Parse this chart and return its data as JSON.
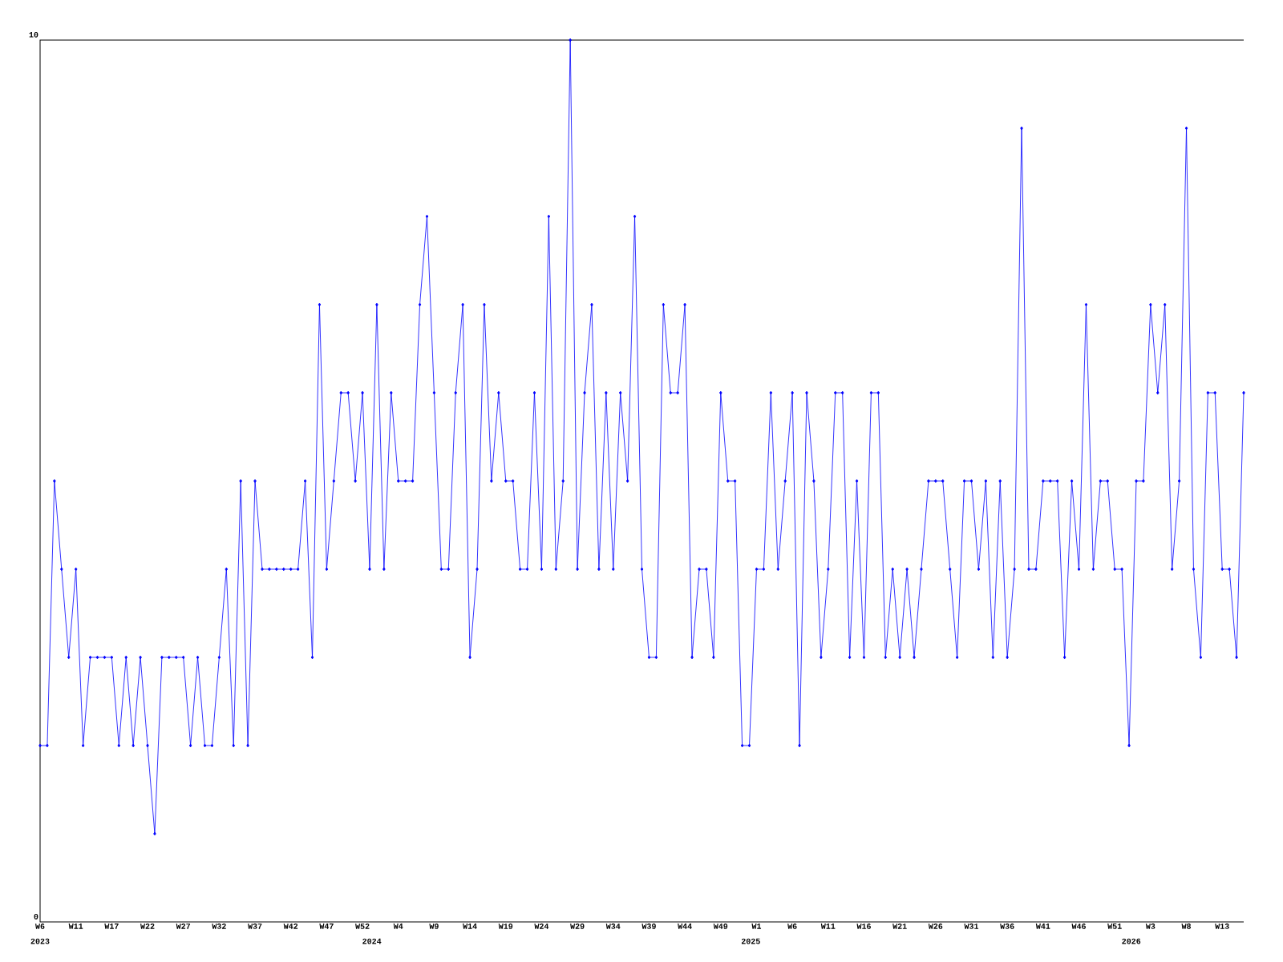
{
  "chart_data": {
    "type": "line",
    "categories": [
      "W6",
      null,
      null,
      null,
      null,
      "W11",
      null,
      null,
      null,
      null,
      "W17",
      null,
      null,
      null,
      null,
      "W22",
      null,
      null,
      null,
      null,
      "W27",
      null,
      null,
      null,
      null,
      "W32",
      null,
      null,
      null,
      null,
      "W37",
      null,
      null,
      null,
      null,
      "W42",
      null,
      null,
      null,
      null,
      "W47",
      null,
      null,
      null,
      null,
      "W52",
      null,
      null,
      null,
      null,
      "W4",
      null,
      null,
      null,
      null,
      "W9",
      null,
      null,
      null,
      null,
      "W14",
      null,
      null,
      null,
      null,
      "W19",
      null,
      null,
      null,
      null,
      "W24",
      null,
      null,
      null,
      null,
      "W29",
      null,
      null,
      null,
      null,
      "W34",
      null,
      null,
      null,
      null,
      "W39",
      null,
      null,
      null,
      null,
      "W44",
      null,
      null,
      null,
      null,
      "W49",
      null,
      null,
      null,
      null,
      "W1",
      null,
      null,
      null,
      null,
      "W6",
      null,
      null,
      null,
      null,
      "W11",
      null,
      null,
      null,
      null,
      "W16",
      null,
      null,
      null,
      null,
      "W21",
      null,
      null,
      null,
      null,
      "W26",
      null,
      null,
      null,
      null,
      "W31",
      null,
      null,
      null,
      null,
      "W36",
      null,
      null,
      null,
      null,
      "W41",
      null,
      null,
      null,
      null,
      "W46",
      null,
      null,
      null,
      null,
      "W51",
      null,
      null,
      null,
      null,
      "W3",
      null,
      null,
      null,
      null,
      "W8",
      null,
      null,
      null,
      null,
      "W13",
      null,
      null,
      null
    ],
    "values": [
      2,
      2,
      5,
      4,
      3,
      4,
      2,
      3,
      3,
      3,
      3,
      2,
      3,
      2,
      3,
      2,
      1,
      3,
      3,
      3,
      3,
      2,
      3,
      2,
      2,
      3,
      4,
      2,
      5,
      2,
      5,
      4,
      4,
      4,
      4,
      4,
      4,
      5,
      3,
      7,
      4,
      5,
      6,
      6,
      5,
      6,
      4,
      7,
      4,
      6,
      5,
      5,
      5,
      7,
      8,
      6,
      4,
      4,
      6,
      7,
      3,
      4,
      7,
      5,
      6,
      5,
      5,
      4,
      4,
      6,
      4,
      8,
      4,
      5,
      10,
      4,
      6,
      7,
      4,
      6,
      4,
      6,
      5,
      8,
      4,
      3,
      3,
      7,
      6,
      6,
      7,
      3,
      4,
      4,
      3,
      6,
      5,
      5,
      2,
      2,
      4,
      4,
      6,
      4,
      5,
      6,
      2,
      6,
      5,
      3,
      4,
      6,
      6,
      3,
      5,
      3,
      6,
      6,
      3,
      4,
      3,
      4,
      3,
      4,
      5,
      5,
      5,
      4,
      3,
      5,
      5,
      4,
      5,
      3,
      5,
      3,
      4,
      9,
      4,
      4,
      5,
      5,
      5,
      3,
      5,
      4,
      7,
      4,
      5,
      5,
      4,
      4,
      2,
      5,
      5,
      7,
      6,
      7,
      4,
      5,
      9,
      4,
      3,
      6,
      6,
      4,
      4,
      3,
      6
    ],
    "color": "#0000ff",
    "marker": "diamond",
    "ylim": [
      0,
      10
    ],
    "yticks": [
      0,
      10
    ],
    "annotations": [
      "2023",
      "2024",
      "2025",
      "2026"
    ]
  }
}
